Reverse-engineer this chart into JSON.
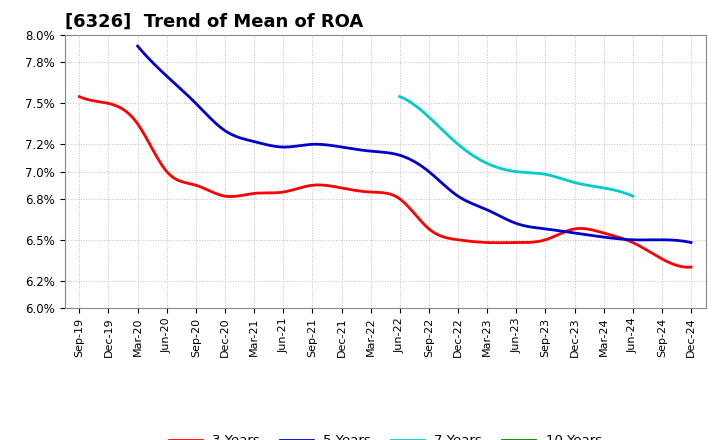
{
  "title": "[6326]  Trend of Mean of ROA",
  "x_labels": [
    "Sep-19",
    "Dec-19",
    "Mar-20",
    "Jun-20",
    "Sep-20",
    "Dec-20",
    "Mar-21",
    "Jun-21",
    "Sep-21",
    "Dec-21",
    "Mar-22",
    "Jun-22",
    "Sep-22",
    "Dec-22",
    "Mar-23",
    "Jun-23",
    "Sep-23",
    "Dec-23",
    "Mar-24",
    "Jun-24",
    "Sep-24",
    "Dec-24"
  ],
  "series_3y": [
    0.0755,
    0.075,
    0.0735,
    0.07,
    0.069,
    0.0682,
    0.0684,
    0.0685,
    0.069,
    0.0688,
    0.0685,
    0.068,
    0.0658,
    0.065,
    0.0648,
    0.0648,
    0.065,
    0.0658,
    0.0655,
    0.0648,
    0.0636,
    0.063
  ],
  "series_5y": [
    null,
    null,
    0.0792,
    0.077,
    0.075,
    0.073,
    0.0722,
    0.0718,
    0.072,
    0.0718,
    0.0715,
    0.0712,
    0.07,
    0.0682,
    0.0672,
    0.0662,
    0.0658,
    0.0655,
    0.0652,
    0.065,
    0.065,
    0.0648
  ],
  "series_7y": [
    null,
    null,
    null,
    null,
    null,
    null,
    null,
    null,
    null,
    null,
    null,
    0.0755,
    0.074,
    0.072,
    0.0706,
    0.07,
    0.0698,
    0.0692,
    0.0688,
    0.0682,
    null,
    null
  ],
  "series_10y": [
    null,
    null,
    null,
    null,
    null,
    null,
    null,
    null,
    null,
    null,
    null,
    null,
    null,
    null,
    null,
    null,
    null,
    null,
    null,
    null,
    null,
    null
  ],
  "color_3y": "#FF0000",
  "color_5y": "#0000CD",
  "color_7y": "#00CCCC",
  "color_10y": "#008000",
  "bg_color": "#FFFFFF",
  "grid_color": "#BBBBBB",
  "title_fontsize": 13,
  "tick_fontsize": 8.5,
  "legend_fontsize": 9.5,
  "linewidth": 2.0,
  "ytick_vals": [
    0.06,
    0.062,
    0.065,
    0.068,
    0.07,
    0.072,
    0.075,
    0.078,
    0.08
  ],
  "ytick_labels": [
    "6.0%",
    "6.2%",
    "6.5%",
    "6.8%",
    "7.0%",
    "7.2%",
    "7.5%",
    "7.8%",
    "8.0%"
  ],
  "ylim": [
    0.06,
    0.08
  ]
}
